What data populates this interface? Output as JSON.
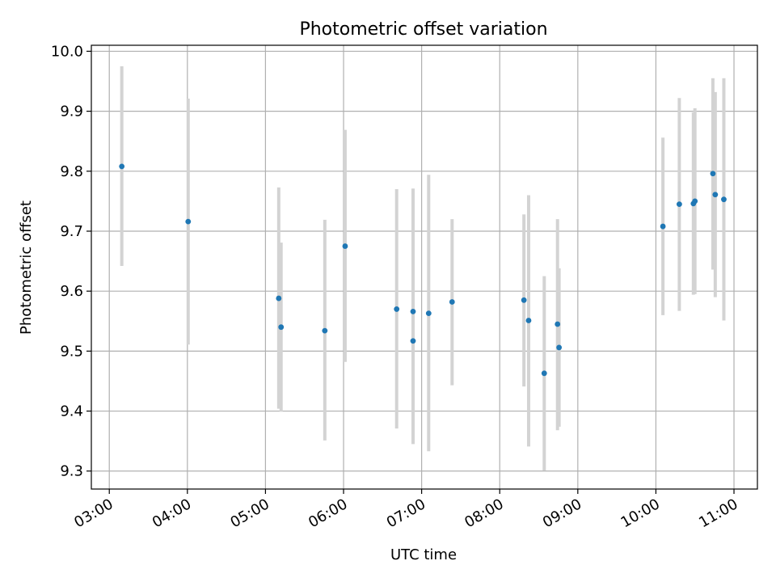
{
  "chart_data": {
    "type": "scatter",
    "title": "Photometric offset variation",
    "xlabel": "UTC time",
    "ylabel": "Photometric offset",
    "x_unit": "hours UTC",
    "xlim": [
      2.77,
      11.3
    ],
    "ylim": [
      9.27,
      10.01
    ],
    "x_ticks": [
      3,
      4,
      5,
      6,
      7,
      8,
      9,
      10,
      11
    ],
    "x_tick_labels": [
      "03:00",
      "04:00",
      "05:00",
      "06:00",
      "07:00",
      "08:00",
      "09:00",
      "10:00",
      "11:00"
    ],
    "y_ticks": [
      9.3,
      9.4,
      9.5,
      9.6,
      9.7,
      9.8,
      9.9,
      10.0
    ],
    "y_tick_labels": [
      "9.3",
      "9.4",
      "9.5",
      "9.6",
      "9.7",
      "9.8",
      "9.9",
      "10.0"
    ],
    "grid": true,
    "marker_color": "#1f77b4",
    "errorbar_color": "#d3d3d3",
    "points": [
      {
        "x": 3.16,
        "y": 9.808,
        "lo": 9.642,
        "hi": 9.975
      },
      {
        "x": 4.01,
        "y": 9.716,
        "lo": 9.511,
        "hi": 9.921
      },
      {
        "x": 5.17,
        "y": 9.588,
        "lo": 9.404,
        "hi": 9.773
      },
      {
        "x": 5.2,
        "y": 9.54,
        "lo": 9.399,
        "hi": 9.681
      },
      {
        "x": 5.76,
        "y": 9.534,
        "lo": 9.351,
        "hi": 9.719
      },
      {
        "x": 6.02,
        "y": 9.675,
        "lo": 9.482,
        "hi": 9.869
      },
      {
        "x": 6.68,
        "y": 9.57,
        "lo": 9.371,
        "hi": 9.77
      },
      {
        "x": 6.89,
        "y": 9.566,
        "lo": 9.36,
        "hi": 9.771
      },
      {
        "x": 6.89,
        "y": 9.517,
        "lo": 9.345,
        "hi": 9.69
      },
      {
        "x": 7.09,
        "y": 9.563,
        "lo": 9.333,
        "hi": 9.794
      },
      {
        "x": 7.39,
        "y": 9.582,
        "lo": 9.443,
        "hi": 9.72
      },
      {
        "x": 8.31,
        "y": 9.585,
        "lo": 9.441,
        "hi": 9.728
      },
      {
        "x": 8.37,
        "y": 9.551,
        "lo": 9.341,
        "hi": 9.76
      },
      {
        "x": 8.57,
        "y": 9.463,
        "lo": 9.301,
        "hi": 9.625
      },
      {
        "x": 8.74,
        "y": 9.545,
        "lo": 9.368,
        "hi": 9.72
      },
      {
        "x": 8.76,
        "y": 9.506,
        "lo": 9.374,
        "hi": 9.638
      },
      {
        "x": 10.09,
        "y": 9.708,
        "lo": 9.56,
        "hi": 9.856
      },
      {
        "x": 10.3,
        "y": 9.745,
        "lo": 9.567,
        "hi": 9.922
      },
      {
        "x": 10.48,
        "y": 9.746,
        "lo": 9.594,
        "hi": 9.898
      },
      {
        "x": 10.5,
        "y": 9.75,
        "lo": 9.595,
        "hi": 9.905
      },
      {
        "x": 10.73,
        "y": 9.796,
        "lo": 9.636,
        "hi": 9.955
      },
      {
        "x": 10.76,
        "y": 9.761,
        "lo": 9.59,
        "hi": 9.932
      },
      {
        "x": 10.87,
        "y": 9.753,
        "lo": 9.551,
        "hi": 9.955
      }
    ]
  }
}
